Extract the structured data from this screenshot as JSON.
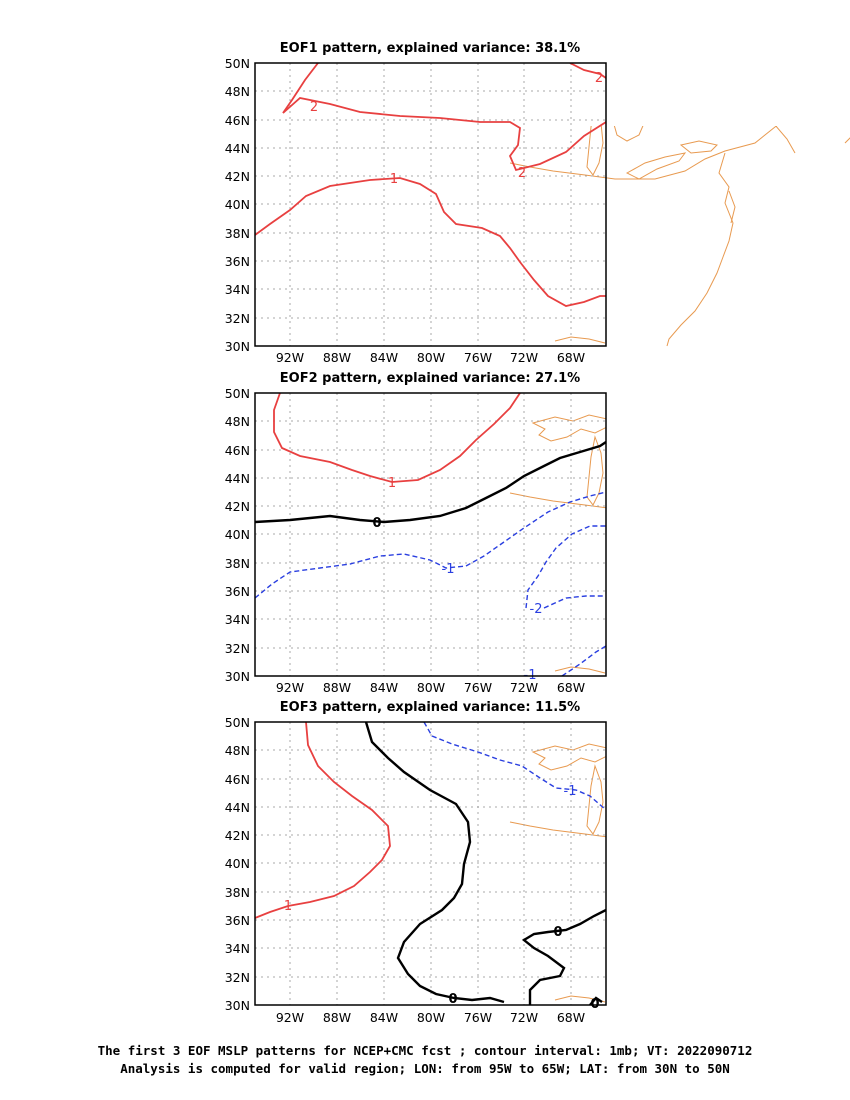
{
  "panels": [
    {
      "title": "EOF1 pattern, explained variance: 38.1%",
      "lat_labels": [
        "50N",
        "48N",
        "46N",
        "44N",
        "42N",
        "40N",
        "38N",
        "36N",
        "34N",
        "32N",
        "30N"
      ],
      "lon_labels": [
        "92W",
        "88W",
        "84W",
        "80W",
        "76W",
        "72W",
        "68W"
      ],
      "contour_labels": [
        "2",
        "2",
        "2",
        "1"
      ]
    },
    {
      "title": "EOF2 pattern, explained variance: 27.1%",
      "lat_labels": [
        "50N",
        "48N",
        "46N",
        "44N",
        "42N",
        "40N",
        "38N",
        "36N",
        "34N",
        "32N",
        "30N"
      ],
      "lon_labels": [
        "92W",
        "88W",
        "84W",
        "80W",
        "76W",
        "72W",
        "68W"
      ],
      "contour_labels": [
        "1",
        "0",
        "-1",
        "-2",
        "-1"
      ]
    },
    {
      "title": "EOF3 pattern, explained variance: 11.5%",
      "lat_labels": [
        "50N",
        "48N",
        "46N",
        "44N",
        "42N",
        "40N",
        "38N",
        "36N",
        "34N",
        "32N",
        "30N"
      ],
      "lon_labels": [
        "92W",
        "88W",
        "84W",
        "80W",
        "76W",
        "72W",
        "68W"
      ],
      "contour_labels": [
        "1",
        "-1",
        "0",
        "0",
        "0"
      ]
    }
  ],
  "caption": {
    "line1": "The first 3 EOF MSLP patterns for NCEP+CMC fcst ; contour interval: 1mb; VT: 2022090712",
    "line2": "Analysis is computed for valid region; LON: from 95W to 65W; LAT: from 30N to 50N"
  },
  "colors": {
    "positive": "#e84040",
    "negative": "#2a3fe0",
    "zero": "#000000",
    "coastline": "#e89a50",
    "grid": "#aaaaaa"
  }
}
